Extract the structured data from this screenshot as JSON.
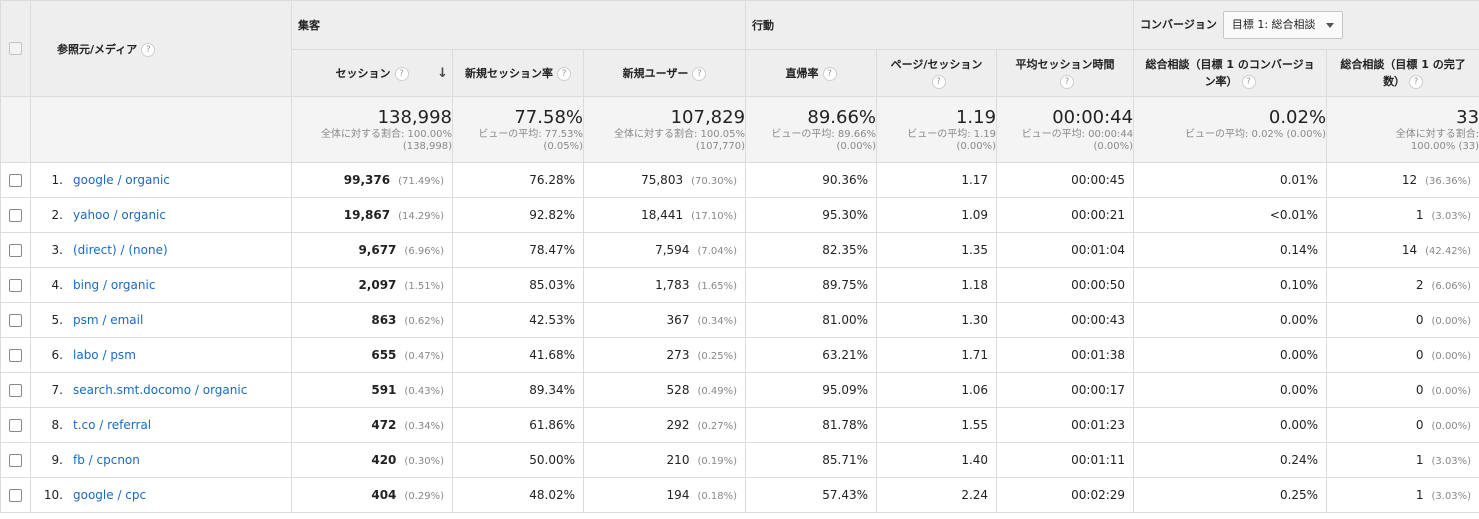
{
  "header": {
    "dimension_label": "参照元/メディア",
    "help_glyph": "?",
    "groups": {
      "acquisition": "集客",
      "behavior": "行動",
      "conversion": "コンバージョン"
    },
    "goal_select": {
      "value": "目標 1: 総合相談"
    }
  },
  "columns": [
    {
      "label": "セッション",
      "sorted": true
    },
    {
      "label": "新規セッション率"
    },
    {
      "label": "新規ユーザー"
    },
    {
      "label": "直帰率"
    },
    {
      "label": "ページ/セッション"
    },
    {
      "label": "平均セッション時間"
    },
    {
      "label": "総合相談（目標 1 のコンバージョン率）"
    },
    {
      "label": "総合相談（目標 1 の完了数）"
    }
  ],
  "totals": [
    {
      "value": "138,998",
      "sub1": "全体に対する割合: 100.00%",
      "sub2": "(138,998)"
    },
    {
      "value": "77.58%",
      "sub1": "ビューの平均: 77.53%",
      "sub2": "(0.05%)"
    },
    {
      "value": "107,829",
      "sub1": "全体に対する割合: 100.05%",
      "sub2": "(107,770)"
    },
    {
      "value": "89.66%",
      "sub1": "ビューの平均: 89.66%",
      "sub2": "(0.00%)"
    },
    {
      "value": "1.19",
      "sub1": "ビューの平均: 1.19",
      "sub2": "(0.00%)"
    },
    {
      "value": "00:00:44",
      "sub1": "ビューの平均: 00:00:44",
      "sub2": "(0.00%)"
    },
    {
      "value": "0.02%",
      "sub1": "ビューの平均: 0.02% (0.00%)",
      "sub2": ""
    },
    {
      "value": "33",
      "sub1": "全体に対する割合:",
      "sub2": "100.00% (33)"
    }
  ],
  "rows": [
    {
      "idx": "1.",
      "source": "google / organic",
      "sessions": "99,376",
      "sessions_pct": "(71.49%)",
      "new_rate": "76.28%",
      "new_users": "75,803",
      "new_users_pct": "(70.30%)",
      "bounce": "90.36%",
      "pps": "1.17",
      "avg_time": "00:00:45",
      "conv_rate": "0.01%",
      "completions": "12",
      "completions_pct": "(36.36%)"
    },
    {
      "idx": "2.",
      "source": "yahoo / organic",
      "sessions": "19,867",
      "sessions_pct": "(14.29%)",
      "new_rate": "92.82%",
      "new_users": "18,441",
      "new_users_pct": "(17.10%)",
      "bounce": "95.30%",
      "pps": "1.09",
      "avg_time": "00:00:21",
      "conv_rate": "<0.01%",
      "completions": "1",
      "completions_pct": "(3.03%)"
    },
    {
      "idx": "3.",
      "source": "(direct) / (none)",
      "sessions": "9,677",
      "sessions_pct": "(6.96%)",
      "new_rate": "78.47%",
      "new_users": "7,594",
      "new_users_pct": "(7.04%)",
      "bounce": "82.35%",
      "pps": "1.35",
      "avg_time": "00:01:04",
      "conv_rate": "0.14%",
      "completions": "14",
      "completions_pct": "(42.42%)"
    },
    {
      "idx": "4.",
      "source": "bing / organic",
      "sessions": "2,097",
      "sessions_pct": "(1.51%)",
      "new_rate": "85.03%",
      "new_users": "1,783",
      "new_users_pct": "(1.65%)",
      "bounce": "89.75%",
      "pps": "1.18",
      "avg_time": "00:00:50",
      "conv_rate": "0.10%",
      "completions": "2",
      "completions_pct": "(6.06%)"
    },
    {
      "idx": "5.",
      "source": "psm / email",
      "sessions": "863",
      "sessions_pct": "(0.62%)",
      "new_rate": "42.53%",
      "new_users": "367",
      "new_users_pct": "(0.34%)",
      "bounce": "81.00%",
      "pps": "1.30",
      "avg_time": "00:00:43",
      "conv_rate": "0.00%",
      "completions": "0",
      "completions_pct": "(0.00%)"
    },
    {
      "idx": "6.",
      "source": "labo / psm",
      "sessions": "655",
      "sessions_pct": "(0.47%)",
      "new_rate": "41.68%",
      "new_users": "273",
      "new_users_pct": "(0.25%)",
      "bounce": "63.21%",
      "pps": "1.71",
      "avg_time": "00:01:38",
      "conv_rate": "0.00%",
      "completions": "0",
      "completions_pct": "(0.00%)"
    },
    {
      "idx": "7.",
      "source": "search.smt.docomo / organic",
      "sessions": "591",
      "sessions_pct": "(0.43%)",
      "new_rate": "89.34%",
      "new_users": "528",
      "new_users_pct": "(0.49%)",
      "bounce": "95.09%",
      "pps": "1.06",
      "avg_time": "00:00:17",
      "conv_rate": "0.00%",
      "completions": "0",
      "completions_pct": "(0.00%)"
    },
    {
      "idx": "8.",
      "source": "t.co / referral",
      "sessions": "472",
      "sessions_pct": "(0.34%)",
      "new_rate": "61.86%",
      "new_users": "292",
      "new_users_pct": "(0.27%)",
      "bounce": "81.78%",
      "pps": "1.55",
      "avg_time": "00:01:23",
      "conv_rate": "0.00%",
      "completions": "0",
      "completions_pct": "(0.00%)"
    },
    {
      "idx": "9.",
      "source": "fb / cpcnon",
      "sessions": "420",
      "sessions_pct": "(0.30%)",
      "new_rate": "50.00%",
      "new_users": "210",
      "new_users_pct": "(0.19%)",
      "bounce": "85.71%",
      "pps": "1.40",
      "avg_time": "00:01:11",
      "conv_rate": "0.24%",
      "completions": "1",
      "completions_pct": "(3.03%)"
    },
    {
      "idx": "10.",
      "source": "google / cpc",
      "sessions": "404",
      "sessions_pct": "(0.29%)",
      "new_rate": "48.02%",
      "new_users": "194",
      "new_users_pct": "(0.18%)",
      "bounce": "57.43%",
      "pps": "2.24",
      "avg_time": "00:02:29",
      "conv_rate": "0.25%",
      "completions": "1",
      "completions_pct": "(3.03%)"
    }
  ]
}
